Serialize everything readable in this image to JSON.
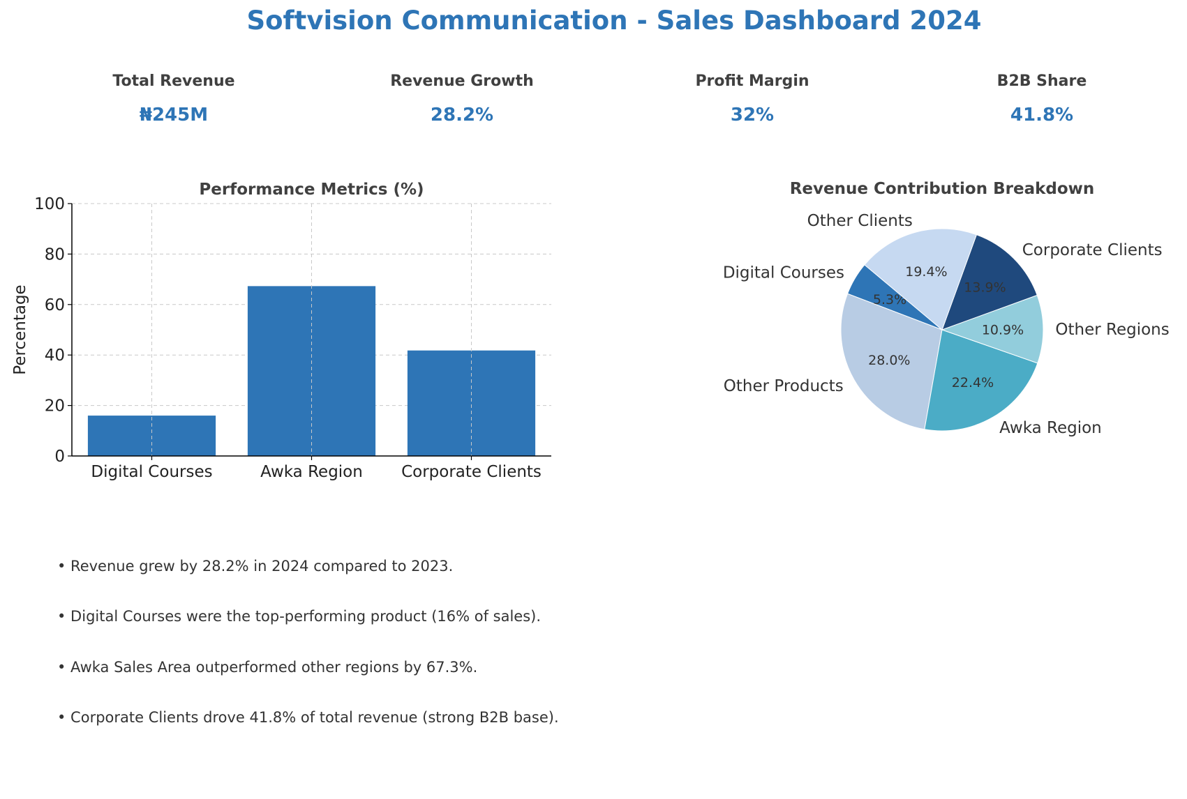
{
  "header": {
    "title": "Softvision Communication - Sales Dashboard 2024"
  },
  "kpis": [
    {
      "label": "Total Revenue",
      "value": "₦245M"
    },
    {
      "label": "Revenue Growth",
      "value": "28.2%"
    },
    {
      "label": "Profit Margin",
      "value": "32%"
    },
    {
      "label": "B2B Share",
      "value": "41.8%"
    }
  ],
  "colors": {
    "accent": "#2e75b6",
    "bar": "#2e75b6",
    "grid": "#c8c8c8",
    "text": "#333333"
  },
  "chart_data": [
    {
      "type": "bar",
      "title": "Performance Metrics (%)",
      "xlabel": "",
      "ylabel": "Percentage",
      "categories": [
        "Digital Courses",
        "Awka Region",
        "Corporate Clients"
      ],
      "values": [
        16,
        67.3,
        41.8
      ],
      "ylim": [
        0,
        100
      ],
      "yticks": [
        0,
        20,
        40,
        60,
        80,
        100
      ],
      "grid": true,
      "legend": "none"
    },
    {
      "type": "pie",
      "title": "Revenue Contribution Breakdown",
      "slices": [
        {
          "label": "Digital Courses",
          "value": 5.3,
          "pct_label": "5.3%",
          "color": "#2e75b6"
        },
        {
          "label": "Other Products",
          "value": 28.0,
          "pct_label": "28.0%",
          "color": "#b8cce4"
        },
        {
          "label": "Awka Region",
          "value": 22.4,
          "pct_label": "22.4%",
          "color": "#4bacc6"
        },
        {
          "label": "Other Regions",
          "value": 10.9,
          "pct_label": "10.9%",
          "color": "#92cddc"
        },
        {
          "label": "Corporate Clients",
          "value": 13.9,
          "pct_label": "13.9%",
          "color": "#1f497d"
        },
        {
          "label": "Other Clients",
          "value": 19.4,
          "pct_label": "19.4%",
          "color": "#c6d9f1"
        }
      ],
      "start_angle_deg": 140,
      "direction": "counterclockwise",
      "legend": "none"
    }
  ],
  "insights": [
    "• Revenue grew by 28.2% in 2024 compared to 2023.",
    "• Digital Courses were the top-performing product (16% of sales).",
    "• Awka Sales Area outperformed other regions by 67.3%.",
    "• Corporate Clients drove 41.8% of total revenue (strong B2B base)."
  ]
}
